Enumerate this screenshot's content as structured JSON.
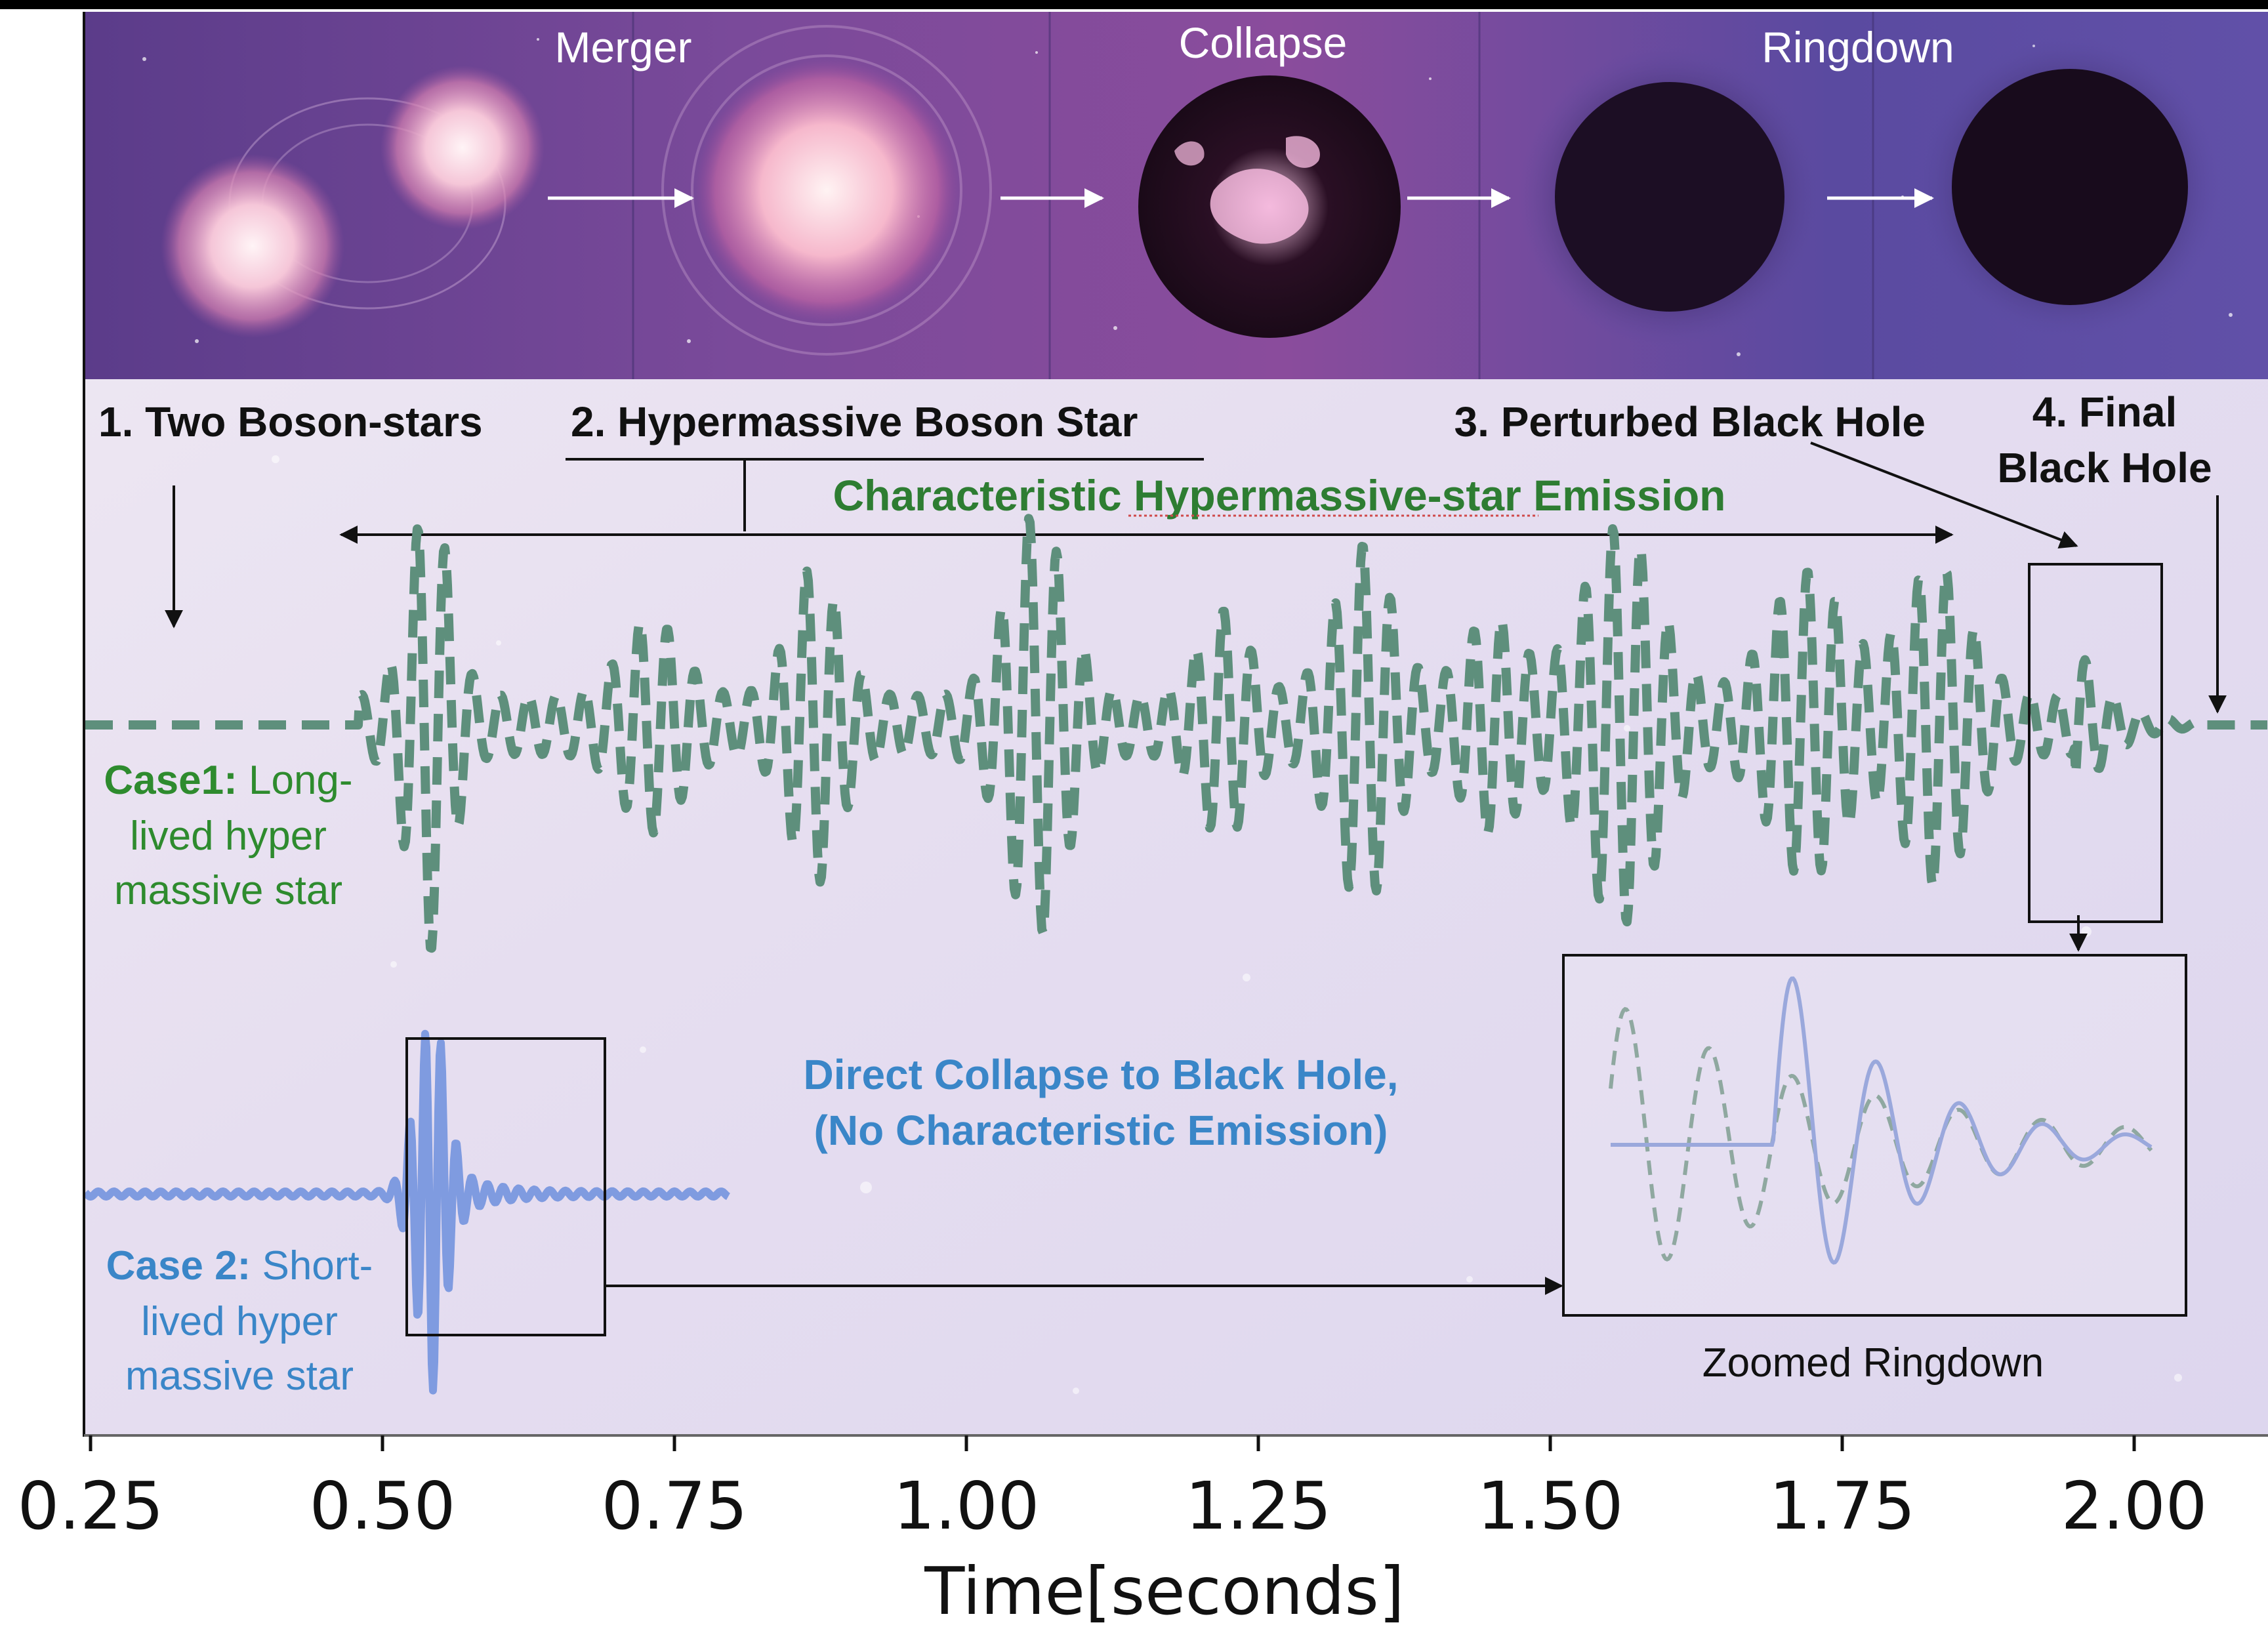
{
  "top_panel": {
    "stage_labels": {
      "merger": "Merger",
      "collapse": "Collapse",
      "ringdown": "Ringdown"
    }
  },
  "phases": {
    "p1": "1. Two Boson-stars",
    "p2": "2. Hypermassive Boson Star",
    "p3": "3. Perturbed Black Hole",
    "p4_line1": "4. Final",
    "p4_line2": "Black Hole"
  },
  "annotations": {
    "characteristic_emission": "Characteristic Hypermassive-star Emission",
    "direct_collapse_line1": "Direct Collapse to Black Hole,",
    "direct_collapse_line2": "(No Characteristic Emission)",
    "zoomed_ringdown": "Zoomed Ringdown"
  },
  "cases": {
    "case1": {
      "prefix": "Case1:",
      "line1": " Long-",
      "line2": "lived hyper",
      "line3": "massive star",
      "color": "#2e8b2e"
    },
    "case2": {
      "prefix": "Case 2:",
      "line1": " Short-",
      "line2": "lived hyper",
      "line3": "massive star",
      "color": "#3a86c8"
    }
  },
  "axis": {
    "xlabel": "Time[seconds]",
    "ticks": [
      "0.25",
      "0.50",
      "0.75",
      "1.00",
      "1.25",
      "1.50",
      "1.75",
      "2.00"
    ]
  },
  "colors": {
    "case1_wave": "#5e8f7c",
    "case2_wave": "#7f9be0",
    "title_green": "#2e7d32",
    "title_blue": "#3a86c8"
  }
}
